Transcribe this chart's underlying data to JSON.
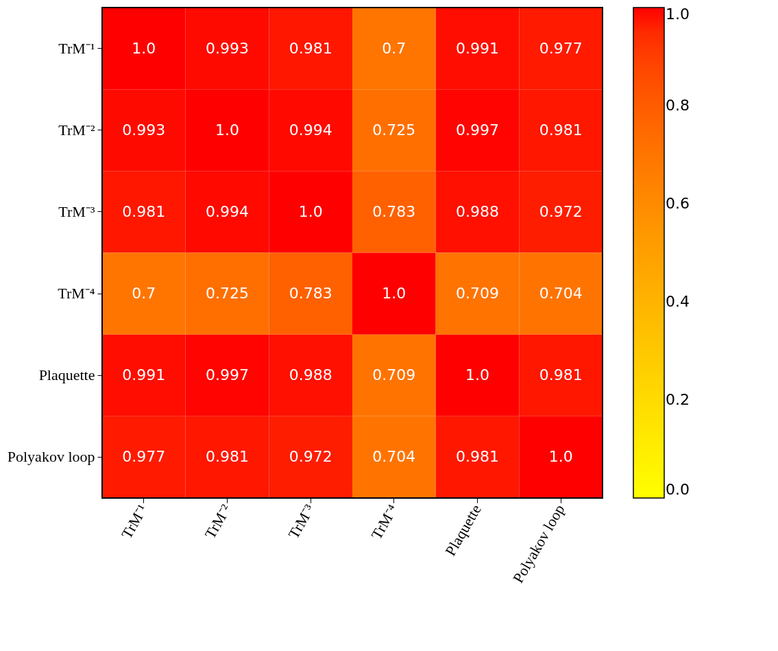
{
  "chart_data": {
    "type": "heatmap",
    "categories": [
      "TrM⁻¹",
      "TrM⁻²",
      "TrM⁻³",
      "TrM⁻⁴",
      "Plaquette",
      "Polyakov loop"
    ],
    "y_categories": [
      "TrM⁻¹",
      "TrM⁻²",
      "TrM⁻³",
      "TrM⁻⁴",
      "Plaquette",
      "Polyakov loop"
    ],
    "cells": [
      [
        1.0,
        0.993,
        0.981,
        0.7,
        0.991,
        0.977
      ],
      [
        0.993,
        1.0,
        0.994,
        0.725,
        0.997,
        0.981
      ],
      [
        0.981,
        0.994,
        1.0,
        0.783,
        0.988,
        0.972
      ],
      [
        0.7,
        0.725,
        0.783,
        1.0,
        0.709,
        0.704
      ],
      [
        0.991,
        0.997,
        0.988,
        0.709,
        1.0,
        0.981
      ],
      [
        0.977,
        0.981,
        0.972,
        0.704,
        0.981,
        1.0
      ]
    ],
    "cell_labels": [
      [
        "1.0",
        "0.993",
        "0.981",
        "0.7",
        "0.991",
        "0.977"
      ],
      [
        "0.993",
        "1.0",
        "0.994",
        "0.725",
        "0.997",
        "0.981"
      ],
      [
        "0.981",
        "0.994",
        "1.0",
        "0.783",
        "0.988",
        "0.972"
      ],
      [
        "0.7",
        "0.725",
        "0.783",
        "1.0",
        "0.709",
        "0.704"
      ],
      [
        "0.991",
        "0.997",
        "0.988",
        "0.709",
        "1.0",
        "0.981"
      ],
      [
        "0.977",
        "0.981",
        "0.972",
        "0.704",
        "0.981",
        "1.0"
      ]
    ],
    "clim": [
      0,
      1
    ],
    "cticks": [
      {
        "value": 0,
        "label": "0.0"
      },
      {
        "value": 0.2,
        "label": "0.2"
      },
      {
        "value": 0.4,
        "label": "0.4"
      },
      {
        "value": 0.6,
        "label": "0.6"
      },
      {
        "value": 0.8,
        "label": "0.8"
      },
      {
        "value": 1,
        "label": "1.0"
      }
    ]
  }
}
